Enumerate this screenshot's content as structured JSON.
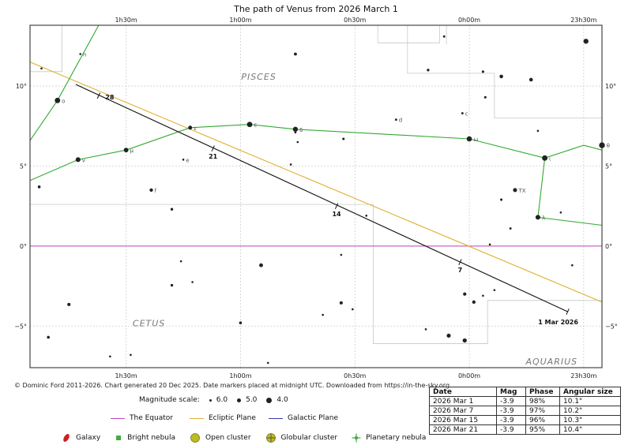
{
  "chart_data": {
    "type": "scatter",
    "title": "The path of Venus from 2026 March 1",
    "x_axis": {
      "unit": "right ascension",
      "ticks": [
        "1h30m",
        "1h00m",
        "0h30m",
        "0h00m",
        "23h30m"
      ],
      "ra_hours": [
        1.5,
        1.0,
        0.5,
        0.0,
        -0.5
      ],
      "range_hours": [
        1.92,
        -0.58
      ],
      "reversed": true
    },
    "y_axis": {
      "unit": "declination",
      "ticks": [
        "10°",
        "5°",
        "0°",
        "−5°"
      ],
      "values": [
        10,
        5,
        0,
        -5
      ],
      "range_deg": [
        -7.6,
        13.8
      ]
    },
    "grid": true,
    "constellation_labels": [
      "PISCES",
      "CETUS",
      "AQUARIUS"
    ],
    "reference_lines": [
      {
        "name": "The Equator",
        "color": "#bb44bb",
        "points": [
          [
            1.92,
            0
          ],
          [
            -0.58,
            0
          ]
        ]
      },
      {
        "name": "Ecliptic Plane",
        "color": "#e0b030",
        "points": [
          [
            1.92,
            11.5
          ],
          [
            -0.58,
            -3.5
          ]
        ]
      }
    ],
    "venus_path": {
      "color": "#111111",
      "start": [
        -0.43,
        -4.1
      ],
      "end": [
        1.72,
        10.1
      ],
      "markers": [
        {
          "label": "1 Mar 2026",
          "ra": -0.43,
          "dec": -4.1
        },
        {
          "label": "7",
          "ra": 0.04,
          "dec": -1.0
        },
        {
          "label": "14",
          "ra": 0.58,
          "dec": 2.5
        },
        {
          "label": "21",
          "ra": 1.12,
          "dec": 6.1
        },
        {
          "label": "28",
          "ra": 1.62,
          "dec": 9.4
        }
      ]
    },
    "pisces_lines": [
      [
        [
          1.92,
          4.1
        ],
        [
          1.71,
          5.4
        ],
        [
          1.5,
          6.0
        ],
        [
          1.22,
          7.4
        ],
        [
          0.96,
          7.6
        ],
        [
          0.76,
          7.3
        ],
        [
          0.0,
          6.7
        ],
        [
          -0.33,
          5.5
        ],
        [
          -0.5,
          6.3
        ],
        [
          -0.58,
          6.0
        ]
      ],
      [
        [
          -0.33,
          5.5
        ],
        [
          -0.3,
          1.8
        ],
        [
          -0.58,
          1.3
        ]
      ],
      [
        [
          1.92,
          6.6
        ],
        [
          1.8,
          9.1
        ],
        [
          1.62,
          13.8
        ]
      ]
    ],
    "stars": [
      {
        "ra": 1.8,
        "dec": 9.1,
        "mag": 4.3,
        "label": "ο"
      },
      {
        "ra": 1.71,
        "dec": 5.4,
        "mag": 4.6,
        "label": "ν"
      },
      {
        "ra": 1.5,
        "dec": 6.0,
        "mag": 4.7,
        "label": "μ"
      },
      {
        "ra": 1.22,
        "dec": 7.4,
        "mag": 5.0,
        "label": "ε"
      },
      {
        "ra": 0.96,
        "dec": 7.6,
        "mag": 4.3,
        "label": "ε"
      },
      {
        "ra": 0.76,
        "dec": 7.3,
        "mag": 4.5,
        "label": "δ"
      },
      {
        "ra": 0.0,
        "dec": 6.7,
        "mag": 4.4,
        "label": "ω"
      },
      {
        "ra": -0.33,
        "dec": 5.5,
        "mag": 4.3,
        "label": "ι"
      },
      {
        "ra": -0.58,
        "dec": 6.3,
        "mag": 4.1,
        "label": "θ"
      },
      {
        "ra": -0.3,
        "dec": 1.8,
        "mag": 4.6,
        "label": "λ"
      },
      {
        "ra": -0.2,
        "dec": 3.5,
        "mag": 5.0,
        "label": "TX"
      },
      {
        "ra": 0.03,
        "dec": 8.3,
        "mag": 5.9,
        "label": "c"
      },
      {
        "ra": 0.32,
        "dec": 7.9,
        "mag": 5.9,
        "label": "d"
      },
      {
        "ra": 1.25,
        "dec": 5.4,
        "mag": 6.0,
        "label": "e"
      },
      {
        "ra": 1.39,
        "dec": 3.5,
        "mag": 5.3,
        "label": "f"
      },
      {
        "ra": 1.7,
        "dec": 12.0,
        "mag": 6.0,
        "label": "n"
      },
      {
        "ra": 1.87,
        "dec": 11.1,
        "mag": 6.0,
        "label": ""
      },
      {
        "ra": 1.88,
        "dec": 3.7,
        "mag": 5.6,
        "label": ""
      },
      {
        "ra": 0.11,
        "dec": 13.1,
        "mag": 5.9,
        "label": ""
      },
      {
        "ra": -0.51,
        "dec": 12.8,
        "mag": 4.5,
        "label": ""
      },
      {
        "ra": 0.18,
        "dec": 11.0,
        "mag": 5.7,
        "label": ""
      },
      {
        "ra": -0.06,
        "dec": 10.9,
        "mag": 5.8,
        "label": ""
      },
      {
        "ra": -0.14,
        "dec": 10.6,
        "mag": 5.2,
        "label": ""
      },
      {
        "ra": -0.27,
        "dec": 10.4,
        "mag": 5.2,
        "label": ""
      },
      {
        "ra": -0.07,
        "dec": 9.3,
        "mag": 5.8,
        "label": ""
      },
      {
        "ra": -0.3,
        "dec": 7.2,
        "mag": 6.0,
        "label": ""
      },
      {
        "ra": 0.76,
        "dec": 12.0,
        "mag": 5.5,
        "label": ""
      },
      {
        "ra": 0.76,
        "dec": 7.1,
        "mag": 6.0,
        "label": ""
      },
      {
        "ra": 0.75,
        "dec": 6.5,
        "mag": 6.0,
        "label": ""
      },
      {
        "ra": 0.55,
        "dec": 6.7,
        "mag": 5.8,
        "label": ""
      },
      {
        "ra": 0.78,
        "dec": 5.1,
        "mag": 6.0,
        "label": ""
      },
      {
        "ra": 1.3,
        "dec": 2.3,
        "mag": 5.7,
        "label": ""
      },
      {
        "ra": 0.45,
        "dec": 1.9,
        "mag": 6.0,
        "label": ""
      },
      {
        "ra": -0.14,
        "dec": 2.9,
        "mag": 5.8,
        "label": ""
      },
      {
        "ra": -0.4,
        "dec": 2.1,
        "mag": 6.0,
        "label": ""
      },
      {
        "ra": -0.18,
        "dec": 1.1,
        "mag": 5.9,
        "label": ""
      },
      {
        "ra": -0.09,
        "dec": 0.1,
        "mag": 6.0,
        "label": ""
      },
      {
        "ra": -0.45,
        "dec": -1.2,
        "mag": 6.0,
        "label": ""
      },
      {
        "ra": 1.26,
        "dec": -0.95,
        "mag": 6.0,
        "label": ""
      },
      {
        "ra": 1.3,
        "dec": -2.45,
        "mag": 5.7,
        "label": ""
      },
      {
        "ra": 1.21,
        "dec": -2.25,
        "mag": 6.0,
        "label": ""
      },
      {
        "ra": 0.91,
        "dec": -1.2,
        "mag": 5.1,
        "label": ""
      },
      {
        "ra": 0.56,
        "dec": -0.55,
        "mag": 6.0,
        "label": ""
      },
      {
        "ra": 1.75,
        "dec": -3.65,
        "mag": 5.4,
        "label": ""
      },
      {
        "ra": 0.56,
        "dec": -3.55,
        "mag": 5.4,
        "label": ""
      },
      {
        "ra": 0.51,
        "dec": -3.95,
        "mag": 6.0,
        "label": ""
      },
      {
        "ra": 0.64,
        "dec": -4.3,
        "mag": 6.0,
        "label": ""
      },
      {
        "ra": 0.02,
        "dec": -3.0,
        "mag": 5.4,
        "label": ""
      },
      {
        "ra": -0.02,
        "dec": -3.5,
        "mag": 5.3,
        "label": ""
      },
      {
        "ra": -0.06,
        "dec": -3.1,
        "mag": 6.0,
        "label": ""
      },
      {
        "ra": -0.11,
        "dec": -2.75,
        "mag": 6.0,
        "label": ""
      },
      {
        "ra": 1.0,
        "dec": -4.8,
        "mag": 5.6,
        "label": ""
      },
      {
        "ra": 0.19,
        "dec": -5.2,
        "mag": 6.0,
        "label": ""
      },
      {
        "ra": 0.09,
        "dec": -5.6,
        "mag": 5.0,
        "label": ""
      },
      {
        "ra": 0.02,
        "dec": -5.9,
        "mag": 4.9,
        "label": ""
      },
      {
        "ra": 1.84,
        "dec": -5.7,
        "mag": 5.6,
        "label": ""
      },
      {
        "ra": 1.57,
        "dec": -6.9,
        "mag": 6.0,
        "label": ""
      },
      {
        "ra": 1.48,
        "dec": -6.8,
        "mag": 6.0,
        "label": ""
      },
      {
        "ra": 0.88,
        "dec": -7.3,
        "mag": 6.0,
        "label": ""
      }
    ]
  },
  "copyright": "© Dominic Ford 2011-2026. Chart generated 20 Dec 2025. Date markers placed at midnight UTC. Downloaded from https://in-the-sky.org",
  "magnitude_scale": {
    "label": "Magnitude scale:",
    "values": [
      "6.0",
      "5.0",
      "4.0"
    ]
  },
  "line_legend": [
    {
      "label": "The Equator",
      "color": "#bb44bb"
    },
    {
      "label": "Ecliptic Plane",
      "color": "#e0b030"
    },
    {
      "label": "Galactic Plane",
      "color": "#3a3ab0"
    }
  ],
  "object_legend": [
    {
      "label": "Galaxy",
      "icon": "galaxy-icon",
      "color": "#cc2222"
    },
    {
      "label": "Bright nebula",
      "icon": "nebula-icon",
      "color": "#44aa44"
    },
    {
      "label": "Open cluster",
      "icon": "open-cluster-icon",
      "color": "#bbbb22"
    },
    {
      "label": "Globular cluster",
      "icon": "globular-cluster-icon",
      "color": "#bbbb22"
    },
    {
      "label": "Planetary nebula",
      "icon": "planetary-nebula-icon",
      "color": "#44aa44"
    }
  ],
  "ephemeris_table": {
    "headers": [
      "Date",
      "Mag",
      "Phase",
      "Angular size"
    ],
    "rows": [
      [
        "2026 Mar 1",
        "-3.9",
        "98%",
        "10.1\""
      ],
      [
        "2026 Mar 7",
        "-3.9",
        "97%",
        "10.2\""
      ],
      [
        "2026 Mar 15",
        "-3.9",
        "96%",
        "10.3\""
      ],
      [
        "2026 Mar 21",
        "-3.9",
        "95%",
        "10.4\""
      ]
    ]
  }
}
